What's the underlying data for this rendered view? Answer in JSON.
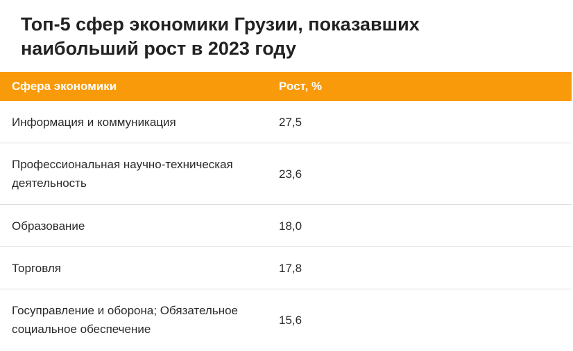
{
  "title": "Топ-5 сфер экономики Грузии, показавших наибольший рост в 2023 году",
  "table": {
    "headers": [
      "Сфера экономики",
      "Рост, %"
    ],
    "rows": [
      [
        "Информация и коммуникация",
        "27,5"
      ],
      [
        "Профессиональная научно-техническая деятельность",
        "23,6"
      ],
      [
        "Образование",
        "18,0"
      ],
      [
        "Торговля",
        "17,8"
      ],
      [
        "Госуправление и оборона; Обязательное социальное обеспечение",
        "15,6"
      ]
    ]
  },
  "colors": {
    "header_background": "#f99a0a",
    "header_text": "#ffffff",
    "row_divider": "#dddddd"
  }
}
